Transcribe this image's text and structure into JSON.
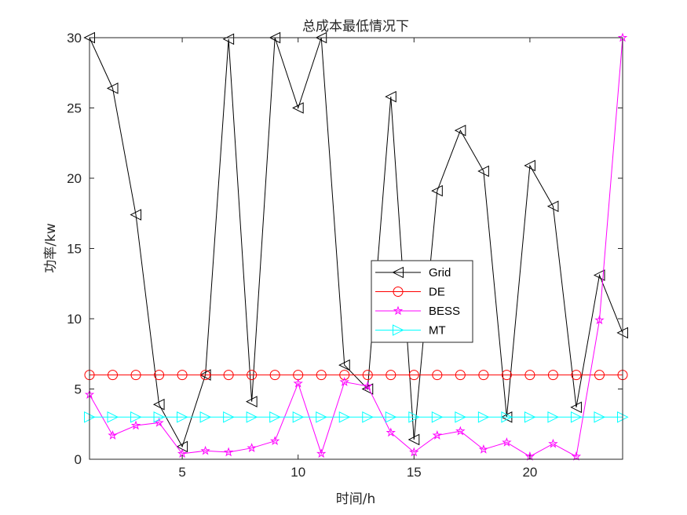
{
  "chart_data": {
    "type": "line",
    "title": "总成本最低情况下",
    "xlabel": "时间/h",
    "ylabel": "功率/kw",
    "xlim": [
      1,
      24
    ],
    "ylim": [
      0,
      30
    ],
    "xticks": [
      5,
      10,
      15,
      20
    ],
    "yticks": [
      0,
      5,
      10,
      15,
      20,
      25,
      30
    ],
    "grid": false,
    "legend_position": "center-right",
    "x": [
      1,
      2,
      3,
      4,
      5,
      6,
      7,
      8,
      9,
      10,
      11,
      12,
      13,
      14,
      15,
      16,
      17,
      18,
      19,
      20,
      21,
      22,
      23,
      24
    ],
    "series": [
      {
        "name": "Grid",
        "color": "#000000",
        "marker": "triangle-left",
        "values": [
          30,
          26.4,
          17.4,
          3.9,
          0.9,
          6.0,
          29.9,
          4.1,
          30.0,
          25.0,
          30.0,
          6.7,
          5.0,
          25.8,
          1.4,
          19.1,
          23.4,
          20.5,
          3.0,
          20.9,
          18.0,
          3.7,
          13.1,
          9.0
        ]
      },
      {
        "name": "DE",
        "color": "#ff0000",
        "marker": "circle",
        "values": [
          6,
          6,
          6,
          6,
          6,
          6,
          6,
          6,
          6,
          6,
          6,
          6,
          6,
          6,
          6,
          6,
          6,
          6,
          6,
          6,
          6,
          6,
          6,
          6
        ]
      },
      {
        "name": "BESS",
        "color": "#ff00ff",
        "marker": "star",
        "values": [
          4.6,
          1.7,
          2.4,
          2.6,
          0.4,
          0.6,
          0.5,
          0.8,
          1.3,
          5.4,
          0.4,
          5.5,
          5.2,
          1.9,
          0.5,
          1.7,
          2.0,
          0.7,
          1.2,
          0.2,
          1.1,
          0.2,
          9.9,
          30.0
        ]
      },
      {
        "name": "MT",
        "color": "#00ffff",
        "marker": "triangle-right",
        "values": [
          3,
          3,
          3,
          3,
          3,
          3,
          3,
          3,
          3,
          3,
          3,
          3,
          3,
          3,
          3,
          3,
          3,
          3,
          3,
          3,
          3,
          3,
          3,
          3
        ]
      }
    ]
  }
}
